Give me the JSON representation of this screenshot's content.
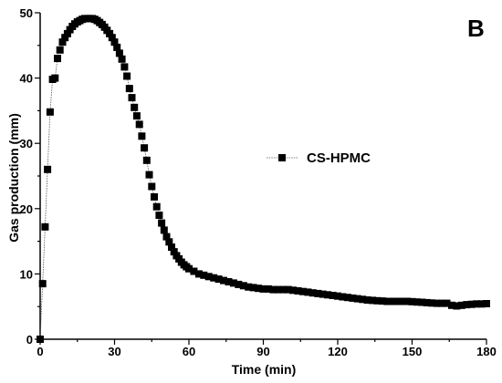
{
  "chart_data": {
    "type": "line",
    "panel_label": "B",
    "xlabel": "Time (min)",
    "ylabel": "Gas production (mm)",
    "xlim": [
      0,
      180
    ],
    "ylim": [
      0,
      50
    ],
    "xticks": [
      0,
      30,
      60,
      90,
      120,
      150,
      180
    ],
    "yticks": [
      0,
      10,
      20,
      30,
      40,
      50
    ],
    "grid": false,
    "legend": {
      "placement": "center-right"
    },
    "series": [
      {
        "name": "CS-HPMC",
        "marker": "square",
        "color": "#000000",
        "x": [
          0,
          1,
          2,
          3,
          4,
          5,
          6,
          7,
          8,
          9,
          10,
          11,
          12,
          13,
          14,
          15,
          16,
          17,
          18,
          19,
          20,
          21,
          22,
          23,
          24,
          25,
          26,
          27,
          28,
          29,
          30,
          31,
          32,
          33,
          34,
          35,
          36,
          37,
          38,
          39,
          40,
          41,
          42,
          43,
          44,
          45,
          46,
          47,
          48,
          49,
          50,
          51,
          52,
          53,
          54,
          55,
          56,
          57,
          58,
          59,
          60,
          62,
          64,
          66,
          68,
          70,
          72,
          74,
          76,
          78,
          80,
          82,
          84,
          86,
          88,
          90,
          92,
          94,
          96,
          98,
          100,
          102,
          104,
          106,
          108,
          110,
          112,
          114,
          116,
          118,
          120,
          122,
          124,
          126,
          128,
          130,
          132,
          134,
          136,
          138,
          140,
          142,
          144,
          146,
          148,
          150,
          152,
          154,
          156,
          158,
          160,
          162,
          164,
          166,
          168,
          170,
          172,
          174,
          176,
          178,
          180
        ],
        "y": [
          0,
          8.5,
          17.2,
          26,
          34.8,
          39.8,
          40,
          43,
          44.3,
          45.5,
          46.2,
          46.8,
          47.4,
          47.9,
          48.3,
          48.6,
          48.8,
          49,
          49.1,
          49.1,
          49.1,
          49.1,
          49,
          48.8,
          48.5,
          48.2,
          47.8,
          47.3,
          46.8,
          46.2,
          45.5,
          44.7,
          43.8,
          42.9,
          41.7,
          40.3,
          38.4,
          37,
          35.5,
          34.2,
          32.9,
          31.1,
          29.3,
          27.4,
          25.2,
          23.4,
          21.8,
          20.3,
          19,
          17.8,
          16.7,
          15.7,
          14.9,
          14.1,
          13.4,
          12.8,
          12.3,
          11.8,
          11.4,
          11.1,
          10.8,
          10.4,
          10,
          9.8,
          9.6,
          9.4,
          9.2,
          9,
          8.8,
          8.6,
          8.4,
          8.2,
          8,
          7.9,
          7.8,
          7.7,
          7.7,
          7.6,
          7.6,
          7.6,
          7.6,
          7.5,
          7.4,
          7.3,
          7.2,
          7.1,
          7,
          6.9,
          6.8,
          6.7,
          6.6,
          6.5,
          6.4,
          6.3,
          6.2,
          6.1,
          6,
          5.95,
          5.9,
          5.85,
          5.8,
          5.8,
          5.8,
          5.8,
          5.8,
          5.75,
          5.7,
          5.65,
          5.6,
          5.55,
          5.5,
          5.5,
          5.5,
          5.2,
          5.1,
          5.2,
          5.3,
          5.35,
          5.4,
          5.4,
          5.45
        ]
      }
    ]
  }
}
